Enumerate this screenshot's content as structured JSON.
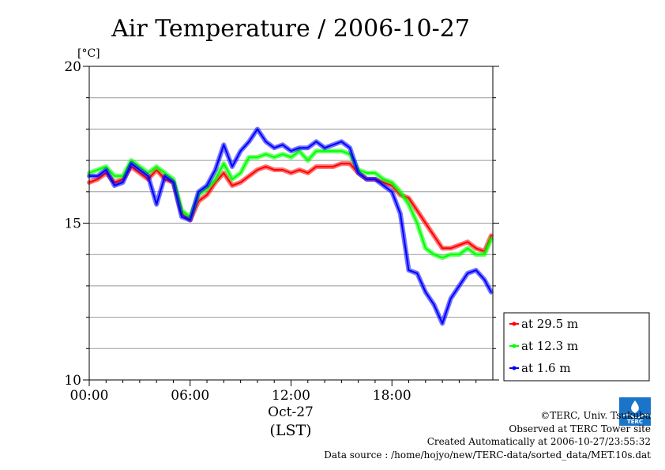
{
  "chart_data": {
    "type": "line",
    "title": "Air Temperature / 2006-10-27",
    "ylabel": "[°C]",
    "xlabel": "(LST)",
    "date_label": "Oct-27",
    "ylim": [
      10,
      20
    ],
    "xlim": [
      0,
      24
    ],
    "y_ticks": [
      "10",
      "15",
      "20"
    ],
    "x_ticks": [
      "00:00",
      "06:00",
      "12:00",
      "18:00"
    ],
    "grid": true,
    "legend_position": "bottom-right outside",
    "x": [
      0.0,
      0.5,
      1.0,
      1.5,
      2.0,
      2.5,
      3.0,
      3.5,
      4.0,
      4.5,
      5.0,
      5.5,
      6.0,
      6.5,
      7.0,
      7.5,
      8.0,
      8.5,
      9.0,
      9.5,
      10.0,
      10.5,
      11.0,
      11.5,
      12.0,
      12.5,
      13.0,
      13.5,
      14.0,
      14.5,
      15.0,
      15.5,
      16.0,
      16.5,
      17.0,
      17.5,
      18.0,
      18.5,
      19.0,
      19.5,
      20.0,
      20.5,
      21.0,
      21.5,
      22.0,
      22.5,
      23.0,
      23.5,
      23.9
    ],
    "series": [
      {
        "name": "at 29.5 m",
        "color": "#ff0000",
        "values": [
          16.3,
          16.4,
          16.6,
          16.3,
          16.4,
          16.8,
          16.6,
          16.4,
          16.7,
          16.4,
          16.3,
          15.3,
          15.1,
          15.7,
          15.9,
          16.3,
          16.6,
          16.2,
          16.3,
          16.5,
          16.7,
          16.8,
          16.7,
          16.7,
          16.6,
          16.7,
          16.6,
          16.8,
          16.8,
          16.8,
          16.9,
          16.9,
          16.6,
          16.4,
          16.4,
          16.3,
          16.2,
          15.9,
          15.8,
          15.4,
          15.0,
          14.6,
          14.2,
          14.2,
          14.3,
          14.4,
          14.2,
          14.1,
          14.6
        ]
      },
      {
        "name": "at 12.3 m",
        "color": "#00ff00",
        "values": [
          16.6,
          16.7,
          16.8,
          16.5,
          16.5,
          17.0,
          16.8,
          16.6,
          16.8,
          16.6,
          16.4,
          15.4,
          15.2,
          15.9,
          16.1,
          16.4,
          16.9,
          16.4,
          16.6,
          17.1,
          17.1,
          17.2,
          17.1,
          17.2,
          17.1,
          17.3,
          17.0,
          17.3,
          17.3,
          17.3,
          17.3,
          17.2,
          16.7,
          16.6,
          16.6,
          16.4,
          16.3,
          16.0,
          15.6,
          15.0,
          14.2,
          14.0,
          13.9,
          14.0,
          14.0,
          14.2,
          14.0,
          14.0,
          14.5
        ]
      },
      {
        "name": "at 1.6 m",
        "color": "#0000ff",
        "values": [
          16.5,
          16.5,
          16.7,
          16.2,
          16.3,
          16.9,
          16.7,
          16.5,
          15.6,
          16.5,
          16.3,
          15.2,
          15.1,
          16.0,
          16.2,
          16.7,
          17.5,
          16.8,
          17.3,
          17.6,
          18.0,
          17.6,
          17.4,
          17.5,
          17.3,
          17.4,
          17.4,
          17.6,
          17.4,
          17.5,
          17.6,
          17.4,
          16.6,
          16.4,
          16.4,
          16.2,
          16.0,
          15.3,
          13.5,
          13.4,
          12.8,
          12.4,
          11.8,
          12.6,
          13.0,
          13.4,
          13.5,
          13.2,
          12.8
        ]
      }
    ]
  },
  "credits": {
    "copyright": "©TERC, Univ. Tsukuba",
    "site": "Observed at TERC Tower site",
    "created": "Created Automatically at 2006-10-27/23:55:32",
    "source": "Data source : /home/hojyo/new/TERC-data/sorted_data/MET.10s.dat"
  },
  "logo": {
    "text": "TERC",
    "color": "#1a75c9"
  }
}
